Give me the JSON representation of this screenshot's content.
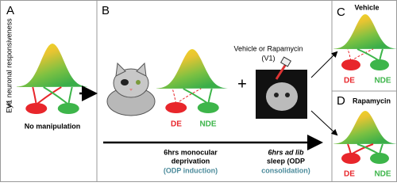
{
  "panels": {
    "a": {
      "label": "A",
      "y_axis": "V1 neuronal responsiveness",
      "eye_axis": "Eye",
      "caption": "No manipulation"
    },
    "b": {
      "label": "B",
      "treatment": "Vehicle or Rapamycin",
      "treatment_site": "(V1)",
      "de": "DE",
      "nde": "NDE",
      "plus": "+",
      "step1": [
        "6hrs monocular",
        "deprivation",
        "(ODP induction)"
      ],
      "step2": [
        "6hrs ad lib",
        "sleep (ODP",
        "consolidation)"
      ]
    },
    "c": {
      "label": "C",
      "title": "Vehicle",
      "de": "DE",
      "nde": "NDE"
    },
    "d": {
      "label": "D",
      "title": "Rapamycin",
      "de": "DE",
      "nde": "NDE"
    }
  }
}
